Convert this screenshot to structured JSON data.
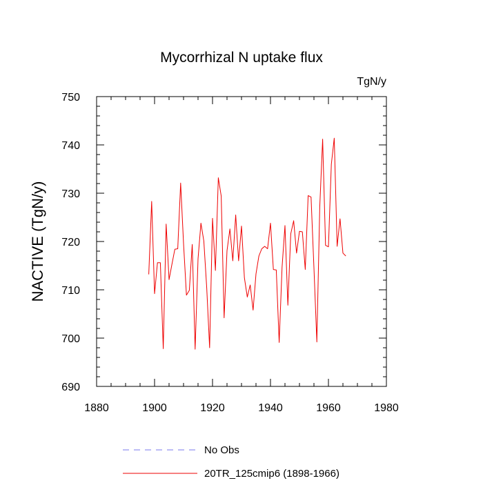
{
  "chart_data": {
    "type": "line",
    "title": "Mycorrhizal N uptake flux",
    "units_label": "TgN/y",
    "xlabel": "",
    "ylabel": "NACTIVE  (TgN/y)",
    "xlim": [
      1880,
      1980
    ],
    "ylim": [
      690,
      750
    ],
    "xticks": [
      1880,
      1900,
      1920,
      1940,
      1960,
      1980
    ],
    "yticks": [
      690,
      700,
      710,
      720,
      730,
      740,
      750
    ],
    "grid": false,
    "legend_position": "bottom",
    "series": [
      {
        "name": "No Obs",
        "color": "#7777ee",
        "dash": true,
        "x": [],
        "values": []
      },
      {
        "name": "20TR_125cmip6 (1898-1966)",
        "color": "#ee0000",
        "dash": false,
        "x": [
          1898,
          1899,
          1900,
          1901,
          1902,
          1903,
          1904,
          1905,
          1906,
          1907,
          1908,
          1909,
          1910,
          1911,
          1912,
          1913,
          1914,
          1915,
          1916,
          1917,
          1918,
          1919,
          1920,
          1921,
          1922,
          1923,
          1924,
          1925,
          1926,
          1927,
          1928,
          1929,
          1930,
          1931,
          1932,
          1933,
          1934,
          1935,
          1936,
          1937,
          1938,
          1939,
          1940,
          1941,
          1942,
          1943,
          1944,
          1945,
          1946,
          1947,
          1948,
          1949,
          1950,
          1951,
          1952,
          1953,
          1954,
          1955,
          1956,
          1957,
          1958,
          1959,
          1960,
          1961,
          1962,
          1963,
          1964,
          1965,
          1966
        ],
        "values": [
          713.2,
          728.3,
          709.2,
          715.6,
          715.6,
          697.8,
          723.6,
          712.1,
          715.3,
          718.4,
          718.5,
          732.1,
          719.6,
          708.9,
          709.9,
          719.4,
          697.7,
          716.4,
          723.8,
          720.1,
          710.4,
          698.0,
          724.8,
          714.0,
          733.2,
          729.4,
          704.2,
          718.1,
          722.6,
          716.0,
          725.5,
          716.0,
          723.2,
          712.5,
          708.5,
          711.0,
          705.8,
          713.3,
          717.0,
          718.5,
          719.0,
          718.5,
          723.8,
          714.2,
          714.1,
          699.1,
          714.7,
          723.3,
          706.8,
          721.6,
          724.3,
          717.6,
          722.1,
          722.0,
          714.2,
          729.5,
          729.2,
          714.5,
          699.2,
          727.1,
          741.2,
          719.2,
          718.9,
          736.0,
          741.4,
          719.0,
          724.7,
          717.6,
          717.0
        ]
      }
    ]
  }
}
